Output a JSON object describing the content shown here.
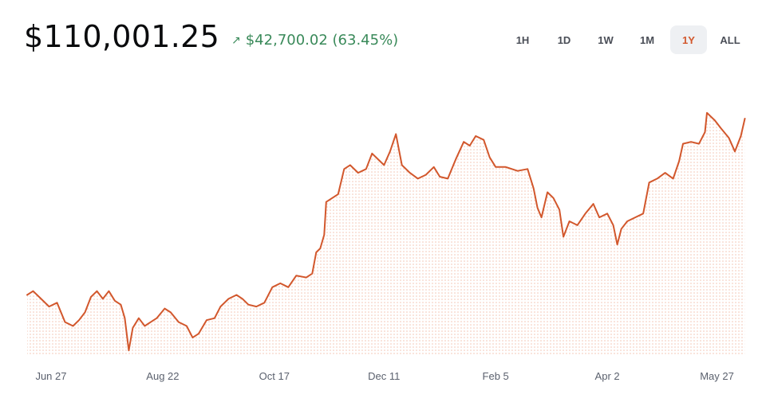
{
  "header": {
    "price": "$110,001.25",
    "change_arrow": "↗",
    "change_text": "$42,700.02 (63.45%)"
  },
  "ranges": {
    "items": [
      "1H",
      "1D",
      "1W",
      "1M",
      "1Y",
      "ALL"
    ],
    "active": "1Y"
  },
  "colors": {
    "line": "#d2572c",
    "fill_dots": "#f2c3b2",
    "positive": "#3a8a5a",
    "active_bg": "#eef0f3"
  },
  "icons": {
    "change": "arrow-up-right-icon"
  },
  "chart_data": {
    "type": "line",
    "title": "",
    "xlabel": "",
    "ylabel": "",
    "x_ticks": [
      {
        "label": "Jun 27",
        "x": "2024-06-27"
      },
      {
        "label": "Aug 22",
        "x": "2024-08-22"
      },
      {
        "label": "Oct 17",
        "x": "2024-10-17"
      },
      {
        "label": "Dec 11",
        "x": "2024-12-11"
      },
      {
        "label": "Feb 5",
        "x": "2025-02-05"
      },
      {
        "label": "Apr 2",
        "x": "2025-04-02"
      },
      {
        "label": "May 27",
        "x": "2025-05-27"
      }
    ],
    "xlim": [
      "2024-06-15",
      "2025-06-15"
    ],
    "ylim": [
      49000,
      118000
    ],
    "grid": false,
    "area_fill": true,
    "series": [
      {
        "points": [
          [
            "2024-06-15",
            64500
          ],
          [
            "2024-06-18",
            65500
          ],
          [
            "2024-06-22",
            63500
          ],
          [
            "2024-06-26",
            61500
          ],
          [
            "2024-06-30",
            62500
          ],
          [
            "2024-07-04",
            57500
          ],
          [
            "2024-07-08",
            56500
          ],
          [
            "2024-07-11",
            58000
          ],
          [
            "2024-07-14",
            60000
          ],
          [
            "2024-07-17",
            64000
          ],
          [
            "2024-07-20",
            65500
          ],
          [
            "2024-07-23",
            63500
          ],
          [
            "2024-07-26",
            65500
          ],
          [
            "2024-07-29",
            63000
          ],
          [
            "2024-08-01",
            62000
          ],
          [
            "2024-08-03",
            58500
          ],
          [
            "2024-08-05",
            50200
          ],
          [
            "2024-08-07",
            56000
          ],
          [
            "2024-08-10",
            58500
          ],
          [
            "2024-08-13",
            56500
          ],
          [
            "2024-08-16",
            57500
          ],
          [
            "2024-08-19",
            58500
          ],
          [
            "2024-08-23",
            61000
          ],
          [
            "2024-08-26",
            60000
          ],
          [
            "2024-08-30",
            57500
          ],
          [
            "2024-09-03",
            56500
          ],
          [
            "2024-09-06",
            53500
          ],
          [
            "2024-09-09",
            54500
          ],
          [
            "2024-09-13",
            58000
          ],
          [
            "2024-09-17",
            58500
          ],
          [
            "2024-09-20",
            61500
          ],
          [
            "2024-09-24",
            63500
          ],
          [
            "2024-09-28",
            64500
          ],
          [
            "2024-10-01",
            63500
          ],
          [
            "2024-10-04",
            62000
          ],
          [
            "2024-10-08",
            61500
          ],
          [
            "2024-10-12",
            62500
          ],
          [
            "2024-10-16",
            66500
          ],
          [
            "2024-10-20",
            67500
          ],
          [
            "2024-10-24",
            66500
          ],
          [
            "2024-10-28",
            69500
          ],
          [
            "2024-11-02",
            69000
          ],
          [
            "2024-11-05",
            70000
          ],
          [
            "2024-11-07",
            75500
          ],
          [
            "2024-11-09",
            76500
          ],
          [
            "2024-11-11",
            80000
          ],
          [
            "2024-11-12",
            88500
          ],
          [
            "2024-11-15",
            89500
          ],
          [
            "2024-11-18",
            90500
          ],
          [
            "2024-11-21",
            97000
          ],
          [
            "2024-11-24",
            98000
          ],
          [
            "2024-11-28",
            96000
          ],
          [
            "2024-12-02",
            97000
          ],
          [
            "2024-12-05",
            101000
          ],
          [
            "2024-12-08",
            99500
          ],
          [
            "2024-12-11",
            98000
          ],
          [
            "2024-12-14",
            101500
          ],
          [
            "2024-12-17",
            106000
          ],
          [
            "2024-12-20",
            98000
          ],
          [
            "2024-12-24",
            96000
          ],
          [
            "2024-12-28",
            94500
          ],
          [
            "2025-01-01",
            95500
          ],
          [
            "2025-01-05",
            97500
          ],
          [
            "2025-01-08",
            95000
          ],
          [
            "2025-01-12",
            94500
          ],
          [
            "2025-01-16",
            99500
          ],
          [
            "2025-01-20",
            104000
          ],
          [
            "2025-01-23",
            103000
          ],
          [
            "2025-01-26",
            105500
          ],
          [
            "2025-01-30",
            104500
          ],
          [
            "2025-02-02",
            100000
          ],
          [
            "2025-02-05",
            97500
          ],
          [
            "2025-02-10",
            97500
          ],
          [
            "2025-02-16",
            96500
          ],
          [
            "2025-02-21",
            97000
          ],
          [
            "2025-02-24",
            92000
          ],
          [
            "2025-02-26",
            87000
          ],
          [
            "2025-02-28",
            84500
          ],
          [
            "2025-03-03",
            91000
          ],
          [
            "2025-03-06",
            89500
          ],
          [
            "2025-03-09",
            86500
          ],
          [
            "2025-03-11",
            79500
          ],
          [
            "2025-03-14",
            83500
          ],
          [
            "2025-03-18",
            82500
          ],
          [
            "2025-03-22",
            85500
          ],
          [
            "2025-03-26",
            88000
          ],
          [
            "2025-03-29",
            84500
          ],
          [
            "2025-04-02",
            85500
          ],
          [
            "2025-04-05",
            82500
          ],
          [
            "2025-04-07",
            77500
          ],
          [
            "2025-04-09",
            81500
          ],
          [
            "2025-04-12",
            83500
          ],
          [
            "2025-04-16",
            84500
          ],
          [
            "2025-04-20",
            85500
          ],
          [
            "2025-04-23",
            93500
          ],
          [
            "2025-04-27",
            94500
          ],
          [
            "2025-05-01",
            96000
          ],
          [
            "2025-05-05",
            94500
          ],
          [
            "2025-05-08",
            99000
          ],
          [
            "2025-05-10",
            103500
          ],
          [
            "2025-05-14",
            104000
          ],
          [
            "2025-05-18",
            103500
          ],
          [
            "2025-05-21",
            106500
          ],
          [
            "2025-05-22",
            111500
          ],
          [
            "2025-05-26",
            109500
          ],
          [
            "2025-05-29",
            107500
          ],
          [
            "2025-06-02",
            105000
          ],
          [
            "2025-06-05",
            101500
          ],
          [
            "2025-06-08",
            105500
          ],
          [
            "2025-06-10",
            110001
          ]
        ]
      }
    ]
  }
}
